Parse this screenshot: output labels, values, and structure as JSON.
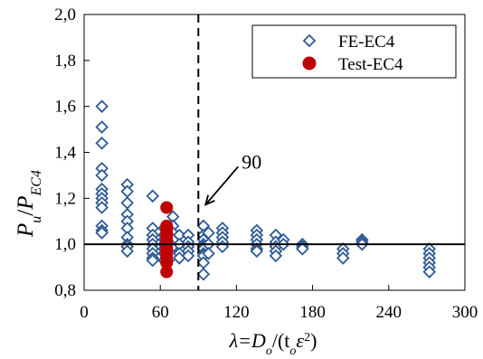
{
  "chart_data": {
    "type": "scatter",
    "title": "",
    "ylabel_parts": {
      "main": "P",
      "sub": "u",
      "slash": "/",
      "main2": "P",
      "sub2": "EC4"
    },
    "xlabel_parts": {
      "lambda": "λ",
      "eq": "=D",
      "sub_o": "o",
      "mid": "/(t",
      "sub_o2": "o",
      "eps": "ε",
      "sup2": "2",
      "close": ")"
    },
    "xlim": [
      0,
      300
    ],
    "ylim": [
      0.8,
      2.0
    ],
    "x_ticks": [
      0,
      60,
      120,
      180,
      240,
      300
    ],
    "x_tick_labels": [
      "0",
      "60",
      "120",
      "180",
      "240",
      "300"
    ],
    "y_ticks": [
      0.8,
      1.0,
      1.2,
      1.4,
      1.6,
      1.8,
      2.0
    ],
    "y_tick_labels": [
      "0,8",
      "1,0",
      "1,2",
      "1,4",
      "1,6",
      "1,8",
      "2,0"
    ],
    "grid": false,
    "legend_position": "top-right",
    "reference_line_y": 1.0,
    "limit_line_x": 90,
    "annotation": {
      "text": "90",
      "x": 90,
      "y": 1.33
    },
    "series": [
      {
        "name": "FE-EC4",
        "marker": "diamond-open",
        "color": "#2e5a94",
        "points": [
          [
            14,
            1.6
          ],
          [
            14,
            1.51
          ],
          [
            14,
            1.44
          ],
          [
            14,
            1.33
          ],
          [
            14,
            1.3
          ],
          [
            14,
            1.24
          ],
          [
            14,
            1.22
          ],
          [
            14,
            1.2
          ],
          [
            14,
            1.18
          ],
          [
            14,
            1.16
          ],
          [
            14,
            1.08
          ],
          [
            14,
            1.06
          ],
          [
            14,
            1.05
          ],
          [
            34,
            1.26
          ],
          [
            34,
            1.23
          ],
          [
            34,
            1.18
          ],
          [
            34,
            1.13
          ],
          [
            34,
            1.1
          ],
          [
            34,
            1.07
          ],
          [
            34,
            1.03
          ],
          [
            34,
            1.0
          ],
          [
            34,
            0.99
          ],
          [
            34,
            0.97
          ],
          [
            54,
            1.21
          ],
          [
            54,
            1.07
          ],
          [
            54,
            1.04
          ],
          [
            54,
            1.02
          ],
          [
            54,
            1.0
          ],
          [
            54,
            0.98
          ],
          [
            54,
            0.96
          ],
          [
            54,
            0.94
          ],
          [
            54,
            0.93
          ],
          [
            63,
            1.07
          ],
          [
            63,
            1.04
          ],
          [
            63,
            1.02
          ],
          [
            63,
            1.0
          ],
          [
            63,
            0.98
          ],
          [
            63,
            0.96
          ],
          [
            63,
            0.93
          ],
          [
            70,
            1.12
          ],
          [
            70,
            1.08
          ],
          [
            70,
            1.05
          ],
          [
            70,
            1.02
          ],
          [
            70,
            0.99
          ],
          [
            70,
            0.95
          ],
          [
            75,
            1.04
          ],
          [
            75,
            1.0
          ],
          [
            75,
            0.96
          ],
          [
            75,
            0.94
          ],
          [
            82,
            1.04
          ],
          [
            82,
            1.01
          ],
          [
            82,
            0.99
          ],
          [
            82,
            0.97
          ],
          [
            82,
            0.95
          ],
          [
            94,
            1.08
          ],
          [
            94,
            1.04
          ],
          [
            94,
            1.02
          ],
          [
            94,
            1.0
          ],
          [
            94,
            0.99
          ],
          [
            94,
            0.98
          ],
          [
            94,
            0.96
          ],
          [
            94,
            0.95
          ],
          [
            94,
            0.92
          ],
          [
            94,
            0.87
          ],
          [
            98,
            1.05
          ],
          [
            98,
            1.0
          ],
          [
            98,
            0.96
          ],
          [
            109,
            1.07
          ],
          [
            109,
            1.05
          ],
          [
            109,
            1.03
          ],
          [
            109,
            1.01
          ],
          [
            109,
            0.99
          ],
          [
            136,
            1.06
          ],
          [
            136,
            1.04
          ],
          [
            136,
            1.02
          ],
          [
            136,
            1.0
          ],
          [
            136,
            0.98
          ],
          [
            136,
            0.97
          ],
          [
            151,
            1.04
          ],
          [
            151,
            1.01
          ],
          [
            151,
            0.99
          ],
          [
            151,
            0.97
          ],
          [
            151,
            0.95
          ],
          [
            157,
            1.02
          ],
          [
            157,
            1.0
          ],
          [
            172,
            1.0
          ],
          [
            172,
            0.99
          ],
          [
            172,
            0.98
          ],
          [
            204,
            0.98
          ],
          [
            204,
            0.96
          ],
          [
            204,
            0.94
          ],
          [
            219,
            1.02
          ],
          [
            219,
            1.01
          ],
          [
            219,
            1.0
          ],
          [
            272,
            0.98
          ],
          [
            272,
            0.96
          ],
          [
            272,
            0.94
          ],
          [
            272,
            0.92
          ],
          [
            272,
            0.9
          ],
          [
            272,
            0.88
          ]
        ]
      },
      {
        "name": "Test-EC4",
        "marker": "circle-filled",
        "color": "#c00000",
        "points": [
          [
            65,
            1.16
          ],
          [
            65,
            1.08
          ],
          [
            65,
            1.07
          ],
          [
            65,
            1.06
          ],
          [
            65,
            1.05
          ],
          [
            65,
            1.04
          ],
          [
            65,
            1.03
          ],
          [
            65,
            1.02
          ],
          [
            65,
            1.01
          ],
          [
            65,
            1.0
          ],
          [
            65,
            0.99
          ],
          [
            65,
            0.98
          ],
          [
            65,
            0.97
          ],
          [
            65,
            0.96
          ],
          [
            65,
            0.95
          ],
          [
            65,
            0.94
          ],
          [
            65,
            0.92
          ],
          [
            65,
            0.88
          ]
        ]
      }
    ]
  }
}
